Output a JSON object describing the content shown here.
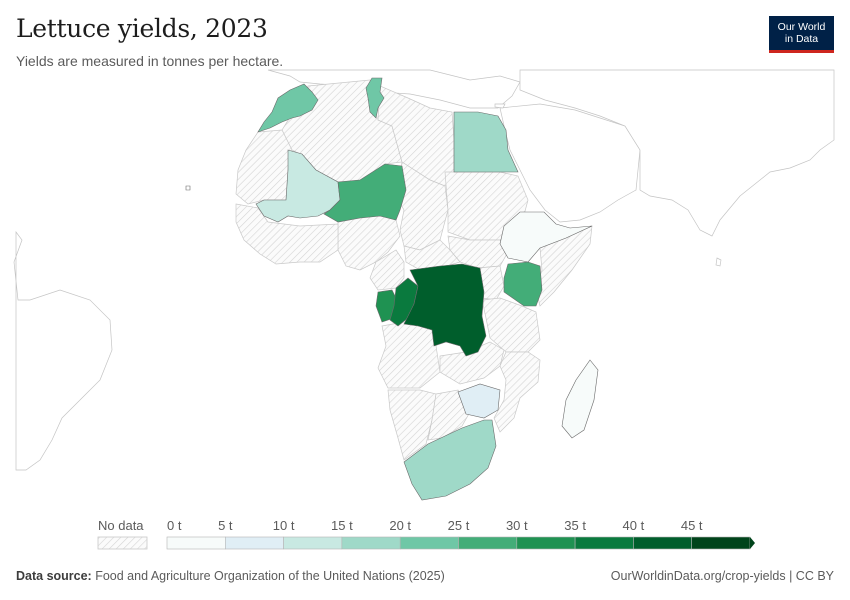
{
  "header": {
    "title": "Lettuce yields, 2023",
    "subtitle": "Yields are measured in tonnes per hectare.",
    "logo_line1": "Our World",
    "logo_line2": "in Data"
  },
  "legend": {
    "no_data_label": "No data",
    "bins": [
      "0 t",
      "5 t",
      "10 t",
      "15 t",
      "20 t",
      "25 t",
      "30 t",
      "35 t",
      "40 t",
      "45 t"
    ],
    "colors": [
      "#f7fbfa",
      "#e0eef5",
      "#c8e9e2",
      "#9fd9c8",
      "#6fc7a6",
      "#43ad78",
      "#1f9252",
      "#0a7a3e",
      "#005e2c",
      "#00441b"
    ]
  },
  "map_data": {
    "unit": "t",
    "countries": [
      {
        "name": "Morocco",
        "bin": 4
      },
      {
        "name": "Tunisia",
        "bin": 4
      },
      {
        "name": "Egypt",
        "bin": 3
      },
      {
        "name": "Mali",
        "bin": 2
      },
      {
        "name": "Senegal",
        "bin": 2
      },
      {
        "name": "Niger",
        "bin": 5
      },
      {
        "name": "Ethiopia",
        "bin": 1
      },
      {
        "name": "Kenya",
        "bin": 5
      },
      {
        "name": "Democratic Republic of Congo",
        "bin": 8
      },
      {
        "name": "Republic of Congo",
        "bin": 8
      },
      {
        "name": "Gabon",
        "bin": 6
      },
      {
        "name": "Zimbabwe",
        "bin": 1
      },
      {
        "name": "South Africa",
        "bin": 3
      },
      {
        "name": "Madagascar",
        "bin": 0
      }
    ]
  },
  "footer": {
    "source_label": "Data source:",
    "source_text": "Food and Agriculture Organization of the United Nations (2025)",
    "url": "OurWorldinData.org/crop-yields | CC BY"
  }
}
